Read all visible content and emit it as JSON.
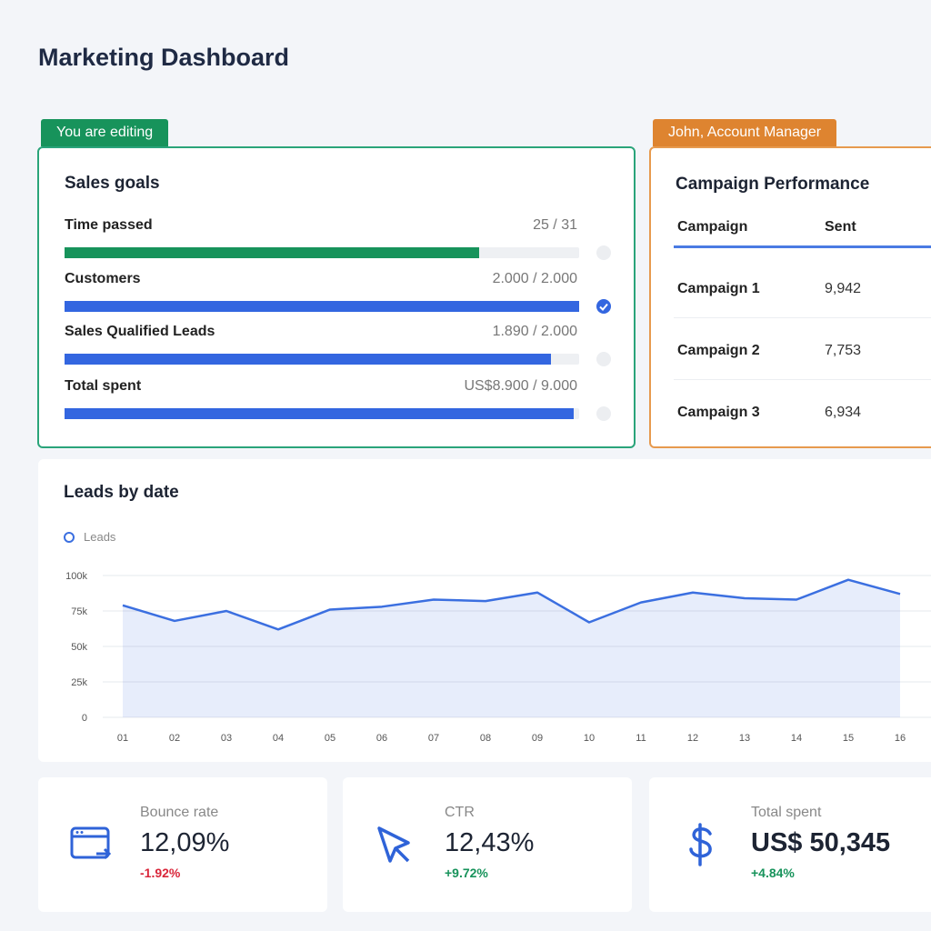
{
  "header": {
    "title": "Marketing Dashboard"
  },
  "sales_goals": {
    "badge": "You are editing",
    "title": "Sales goals",
    "items": [
      {
        "label": "Time passed",
        "value": 25,
        "target": 31,
        "value_label": "25 / 31",
        "color": "#17935b"
      },
      {
        "label": "Customers",
        "value": 2000,
        "target": 2000,
        "value_label": "2.000 / 2.000",
        "color": "#3366e0"
      },
      {
        "label": "Sales Qualified Leads",
        "value": 1890,
        "target": 2000,
        "value_label": "1.890 / 2.000",
        "color": "#3366e0"
      },
      {
        "label": "Total spent",
        "value": 8900,
        "target": 9000,
        "value_label": "US$8.900 / 9.000",
        "color": "#3366e0"
      }
    ]
  },
  "campaigns": {
    "badge": "John, Account Manager",
    "title": "Campaign Performance",
    "columns": [
      "Campaign",
      "Sent"
    ],
    "rows": [
      [
        "Campaign 1",
        "9,942"
      ],
      [
        "Campaign 2",
        "7,753"
      ],
      [
        "Campaign 3",
        "6,934"
      ]
    ]
  },
  "chart_data": {
    "type": "line",
    "title": "Leads by date",
    "categories": [
      "01",
      "02",
      "03",
      "04",
      "05",
      "06",
      "07",
      "08",
      "09",
      "10",
      "11",
      "12",
      "13",
      "14",
      "15",
      "16"
    ],
    "series": [
      {
        "name": "Leads",
        "color": "#3b6fe0",
        "values": [
          79000,
          68000,
          75000,
          62000,
          76000,
          78000,
          83000,
          82000,
          88000,
          67000,
          81000,
          88000,
          84000,
          83000,
          97000,
          87000
        ]
      }
    ],
    "ylim": [
      0,
      100000
    ],
    "yticks": [
      0,
      {
        "value": 25000,
        "label": "25k"
      },
      {
        "value": 50000,
        "label": "50k"
      },
      {
        "value": 75000,
        "label": "75k"
      },
      {
        "value": 100000,
        "label": "100k"
      }
    ],
    "grid": true,
    "legend": "top-left"
  },
  "stats": [
    {
      "label": "Bounce rate",
      "value": "12,09%",
      "change": "-1.92%",
      "trend": "down"
    },
    {
      "label": "CTR",
      "value": "12,43%",
      "change": "+9.72%",
      "trend": "up"
    },
    {
      "label": "Total spent",
      "value": "US$ 50,345",
      "change": "+4.84%",
      "trend": "up"
    }
  ]
}
